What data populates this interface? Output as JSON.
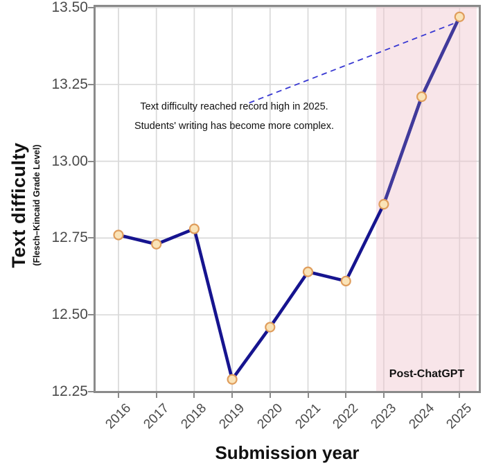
{
  "chart_data": {
    "type": "line",
    "title": "",
    "xlabel": "Submission year",
    "ylabel": "Text difficulty",
    "ylabel_sub": "(Flesch–Kincaid Grade Level)",
    "categories": [
      2016,
      2017,
      2018,
      2019,
      2020,
      2021,
      2022,
      2023,
      2024,
      2025
    ],
    "series": [
      {
        "name": "Flesch–Kincaid Grade Level",
        "values": [
          12.76,
          12.73,
          12.78,
          12.29,
          12.46,
          12.64,
          12.61,
          12.86,
          13.21,
          13.47
        ]
      }
    ],
    "post_segment_start_year": 2023,
    "ylim": [
      12.25,
      13.5
    ],
    "yticks": [
      13.5,
      13.25,
      13.0,
      12.75,
      12.5,
      12.25
    ],
    "grid": true,
    "legend": "none",
    "shaded_region": {
      "label": "Post-ChatGPT",
      "from_x": 2022.8,
      "to_x": 2025.45
    },
    "annotation": {
      "lines": [
        "Text difficulty reached record high in 2025.",
        "Students' writing has become more complex."
      ],
      "pointer_from": {
        "x": 2019.45,
        "y": 13.19
      },
      "pointer_to": {
        "x": 2024.88,
        "y": 13.45
      }
    },
    "colors": {
      "line": "#16148f",
      "line_post": "#413a9b",
      "marker_fill": "#fae3b7",
      "marker_stroke": "#df9d5c",
      "band": "rgba(240,198,206,0.45)",
      "pointer": "#3838d2",
      "grid": "#d9d9d9",
      "axis": "#8a8a8a",
      "tick_text": "#4a4a4a"
    }
  }
}
